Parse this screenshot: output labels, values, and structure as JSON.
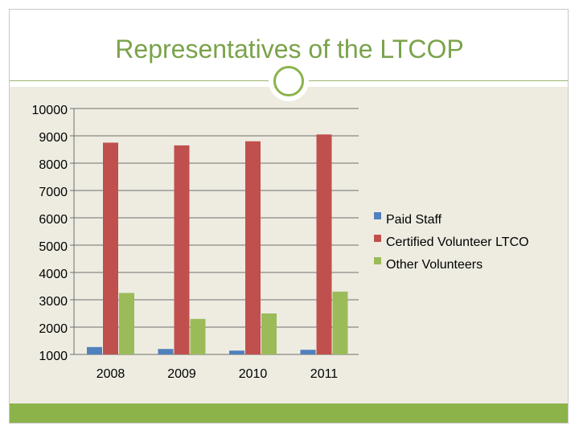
{
  "slide": {
    "title": "Representatives of the LTCOP"
  },
  "colors": {
    "title": "#7aa34a",
    "accent": "#8bb34a",
    "content_bg": "#eeece1"
  },
  "chart_data": {
    "type": "bar",
    "title": "",
    "xlabel": "",
    "ylabel": "",
    "categories": [
      "2008",
      "2009",
      "2010",
      "2011"
    ],
    "series": [
      {
        "name": "Paid Staff",
        "color": "#4f81bd",
        "values": [
          1270,
          1200,
          1140,
          1170
        ]
      },
      {
        "name": "Certified Volunteer LTCO",
        "color": "#c0504d",
        "values": [
          8750,
          8650,
          8800,
          9050
        ]
      },
      {
        "name": "Other Volunteers",
        "color": "#9bbb59",
        "values": [
          3250,
          2300,
          2500,
          3300
        ]
      }
    ],
    "ylim": [
      1000,
      10000
    ],
    "yticks": [
      1000,
      2000,
      3000,
      4000,
      5000,
      6000,
      7000,
      8000,
      9000,
      10000
    ],
    "grid": true,
    "legend_position": "right"
  }
}
